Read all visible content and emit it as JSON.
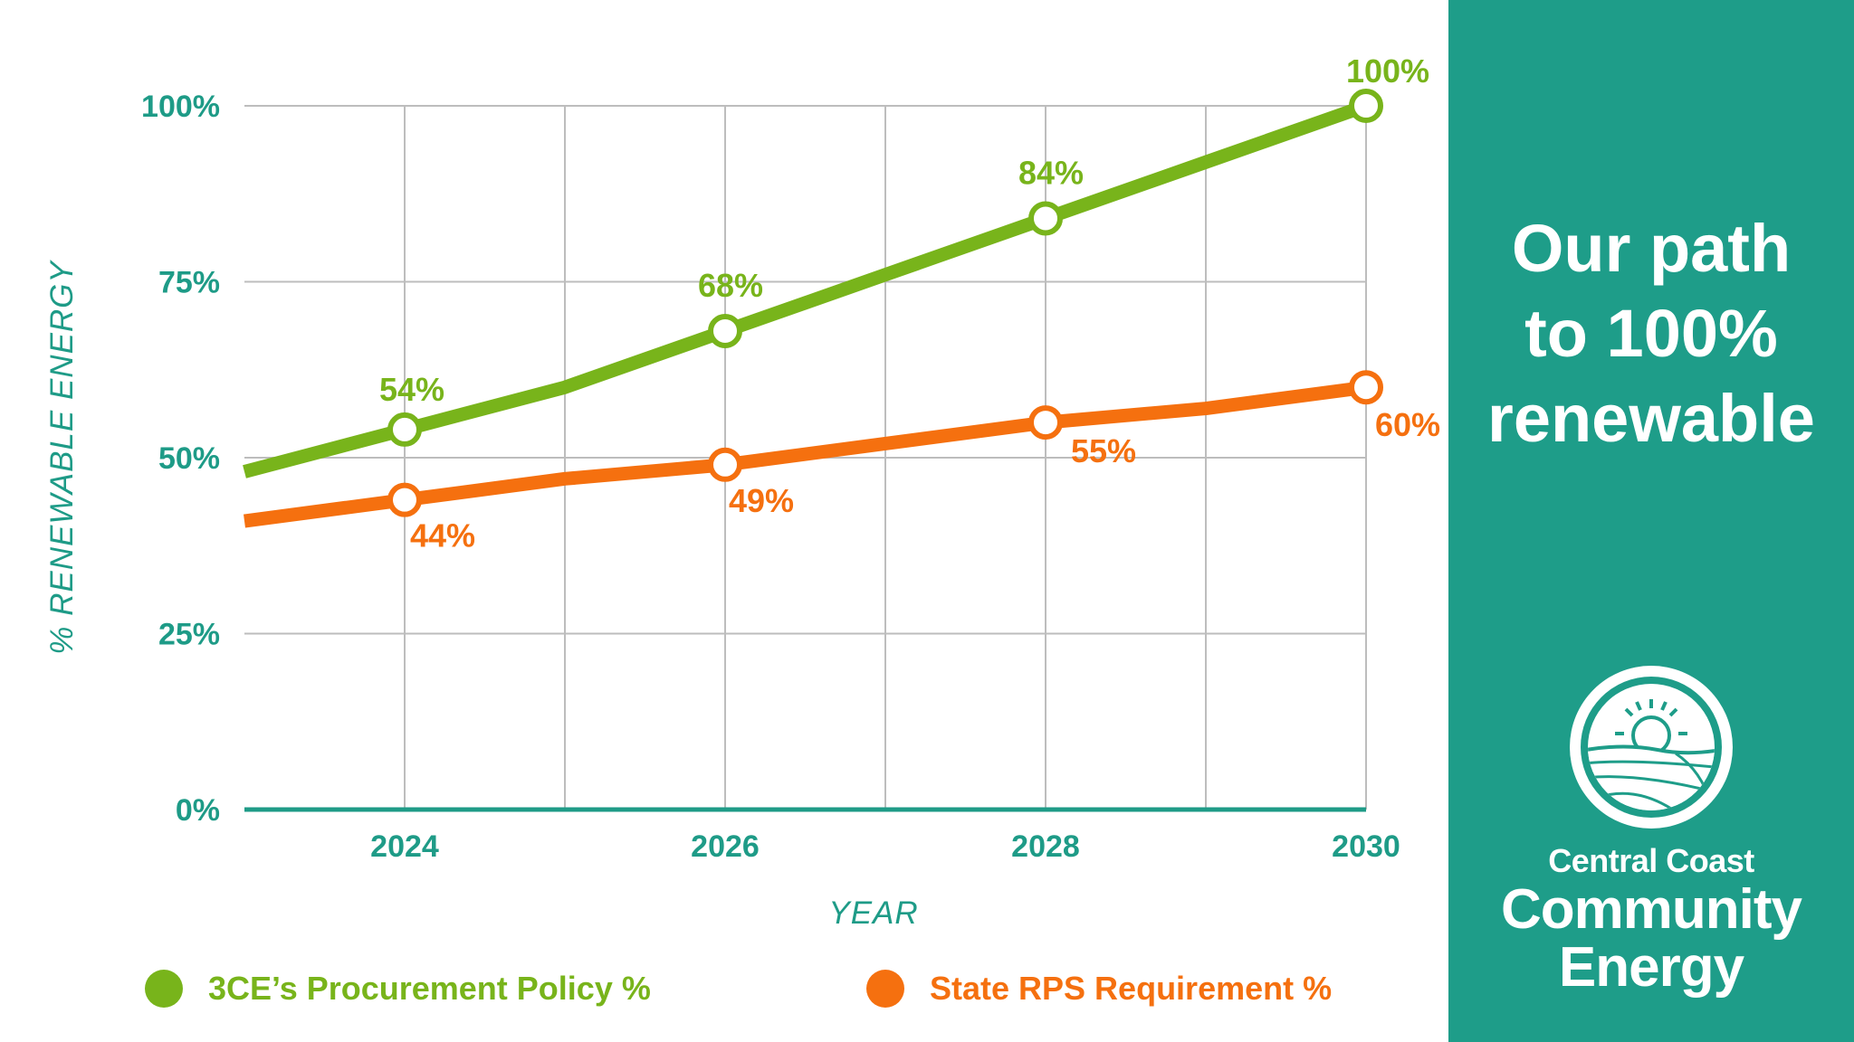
{
  "chart_data": {
    "type": "line",
    "title": "",
    "xlabel": "YEAR",
    "ylabel": "% RENEWABLE ENERGY",
    "x": [
      2023,
      2024,
      2025,
      2026,
      2027,
      2028,
      2029,
      2030
    ],
    "xlim": [
      2023,
      2030
    ],
    "ylim": [
      0,
      100
    ],
    "xticks": [
      2024,
      2026,
      2028,
      2030
    ],
    "xtick_labels": [
      "2024",
      "2026",
      "2028",
      "2030"
    ],
    "yticks": [
      0,
      25,
      50,
      75,
      100
    ],
    "ytick_labels": [
      "0%",
      "25%",
      "50%",
      "75%",
      "100%"
    ],
    "grid": true,
    "series": [
      {
        "name": "3CE’s Procurement Policy %",
        "color": "#78b41b",
        "values": [
          48,
          54,
          60,
          68,
          76,
          84,
          92,
          100
        ],
        "markers": [
          2024,
          2026,
          2028,
          2030
        ],
        "data_labels": [
          "54%",
          "68%",
          "84%",
          "100%"
        ]
      },
      {
        "name": "State RPS Requirement %",
        "color": "#f5700f",
        "values": [
          41,
          44,
          47,
          49,
          52,
          55,
          57,
          60
        ],
        "markers": [
          2024,
          2026,
          2028,
          2030
        ],
        "data_labels": [
          "44%",
          "49%",
          "55%",
          "60%"
        ]
      }
    ]
  },
  "legend": {
    "items": [
      {
        "label": "3CE’s Procurement Policy %",
        "color": "#78b41b"
      },
      {
        "label": "State RPS Requirement %",
        "color": "#f5700f"
      }
    ]
  },
  "panel": {
    "background": "#1e9d89",
    "headline": [
      "Our path",
      "to 100%",
      "renewable"
    ],
    "brand": {
      "line1": "Central Coast",
      "line2": "Community",
      "line3": "Energy"
    },
    "logo_icon": "sun-over-fields-icon"
  }
}
